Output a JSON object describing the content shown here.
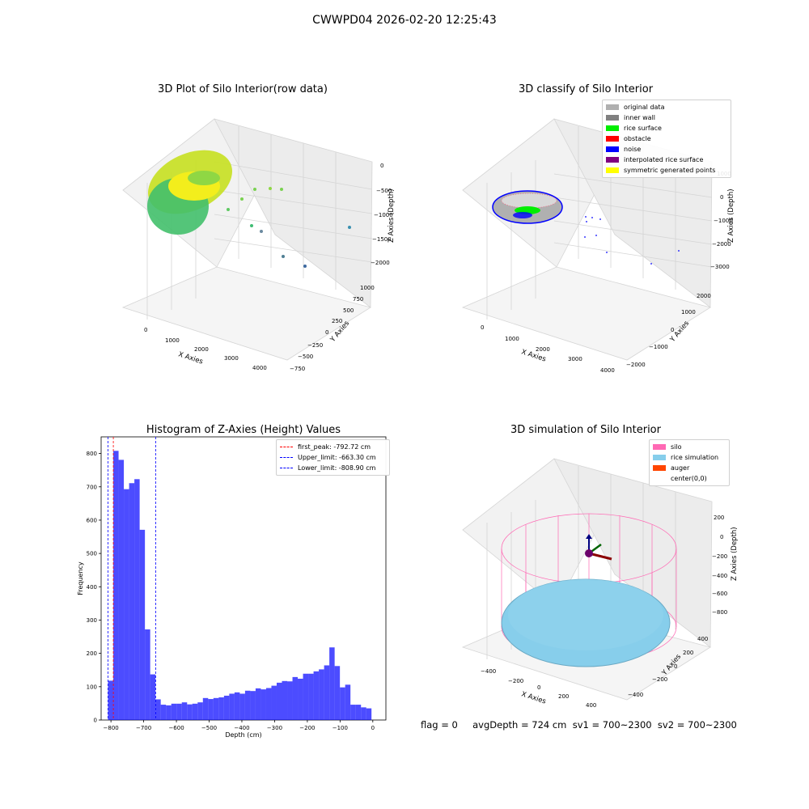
{
  "suptitle": "CWWPD04 2026-02-20 12:25:43",
  "panels": {
    "raw": {
      "title": "3D Plot of Silo Interior(row data)",
      "xlabel": "X Axies",
      "ylabel": "Y Axies",
      "zlabel": "Z Axies (Depth)",
      "xticks": [
        "0",
        "1000",
        "2000",
        "3000",
        "4000"
      ],
      "yticks": [
        "−750",
        "−500",
        "−250",
        "0",
        "250",
        "500",
        "750",
        "1000"
      ],
      "zticks": [
        "0",
        "−500",
        "−1000",
        "−1500",
        "−2000"
      ]
    },
    "classify": {
      "title": "3D classify of Silo Interior",
      "xlabel": "X Axies",
      "ylabel": "Y Axies",
      "zlabel": "Z Axies (Depth)",
      "xticks": [
        "0",
        "1000",
        "2000",
        "3000",
        "4000"
      ],
      "yticks": [
        "−2000",
        "−1000",
        "0",
        "1000",
        "2000"
      ],
      "zticks": [
        "1000",
        "0",
        "−1000",
        "−2000",
        "−3000"
      ],
      "legend": [
        {
          "label": "original data",
          "color": "#b0b0b0"
        },
        {
          "label": "inner wall",
          "color": "#808080"
        },
        {
          "label": "rice surface",
          "color": "#00ee00"
        },
        {
          "label": "obstacle",
          "color": "#ff0000"
        },
        {
          "label": "noise",
          "color": "#0000ff"
        },
        {
          "label": "interpolated rice surface",
          "color": "#800080"
        },
        {
          "label": "symmetric generated points",
          "color": "#ffff00"
        }
      ]
    },
    "simulation": {
      "title": "3D simulation of Silo Interior",
      "xlabel": "X Axies",
      "ylabel": "Y Axies",
      "zlabel": "Z Axies (Depth)",
      "xticks": [
        "−400",
        "−200",
        "0",
        "200",
        "400"
      ],
      "yticks": [
        "−400",
        "−200",
        "0",
        "200",
        "400"
      ],
      "zticks": [
        "200",
        "0",
        "−200",
        "−400",
        "−600",
        "−800"
      ],
      "legend": [
        {
          "label": "silo",
          "color": "#ff69b4"
        },
        {
          "label": "rice simulation",
          "color": "#87ceeb"
        },
        {
          "label": "auger",
          "color": "#ff4500"
        },
        {
          "label": "center(0,0)",
          "color": "#ffffff"
        }
      ]
    },
    "footer": "flag = 0     avgDepth = 724 cm  sv1 = 700~2300  sv2 = 700~2300"
  },
  "chart_data": [
    {
      "type": "bar",
      "title": "Histogram of Z-Axies (Height) Values",
      "xlabel": "Depth (cm)",
      "ylabel": "Frequency",
      "xlim": [
        -830,
        40
      ],
      "ylim": [
        0,
        850
      ],
      "xticks": [
        -800,
        -700,
        -600,
        -500,
        -400,
        -300,
        -200,
        -100,
        0
      ],
      "xtick_labels": [
        "−800",
        "−700",
        "−600",
        "−500",
        "−400",
        "−300",
        "−200",
        "−100",
        "0"
      ],
      "yticks": [
        0,
        100,
        200,
        300,
        400,
        500,
        600,
        700,
        800
      ],
      "bar_color": "#0000ff",
      "bin_edges": [
        -808.9,
        -792.8,
        -776.7,
        -760.6,
        -744.5,
        -728.4,
        -712.3,
        -696.2,
        -680.1,
        -664.0,
        -647.9,
        -631.8,
        -615.7,
        -599.6,
        -583.5,
        -567.4,
        -551.3,
        -535.2,
        -519.1,
        -503.0,
        -486.9,
        -470.8,
        -454.7,
        -438.6,
        -422.5,
        -406.4,
        -390.3,
        -374.2,
        -358.1,
        -342.0,
        -325.9,
        -309.8,
        -293.7,
        -277.6,
        -261.5,
        -245.4,
        -229.3,
        -213.2,
        -197.1,
        -181.0,
        -164.9,
        -148.8,
        -132.7,
        -116.6,
        -100.5,
        -84.4,
        -68.3,
        -52.2,
        -36.1,
        -20.0,
        -4.0
      ],
      "values": [
        118,
        808,
        781,
        693,
        711,
        723,
        571,
        272,
        137,
        62,
        46,
        44,
        49,
        49,
        53,
        47,
        49,
        53,
        66,
        63,
        66,
        68,
        73,
        79,
        83,
        79,
        88,
        87,
        95,
        92,
        96,
        103,
        112,
        117,
        116,
        129,
        124,
        139,
        139,
        146,
        152,
        164,
        218,
        162,
        98,
        106,
        46,
        46,
        38,
        35
      ],
      "vlines": [
        {
          "label": "first_peak: -792.72 cm",
          "value": -792.72,
          "color": "#ff0000"
        },
        {
          "label": "Upper_limit: -663.30 cm",
          "value": -663.3,
          "color": "#0000ff"
        },
        {
          "label": "Lower_limit: -808.90 cm",
          "value": -808.9,
          "color": "#0000ff"
        }
      ]
    }
  ]
}
